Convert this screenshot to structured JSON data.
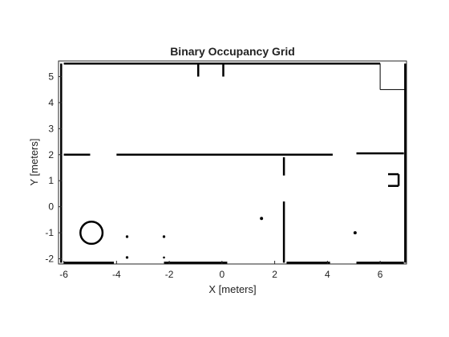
{
  "chart_data": {
    "type": "heatmap",
    "title": "Binary Occupancy Grid",
    "xlabel": "X [meters]",
    "ylabel": "Y [meters]",
    "xlim": [
      -6.2,
      7.0
    ],
    "ylim": [
      -2.2,
      5.6
    ],
    "xticks": [
      "-6",
      "-4",
      "-2",
      "0",
      "2",
      "4",
      "6"
    ],
    "yticks": [
      "-2",
      "-1",
      "0",
      "1",
      "2",
      "3",
      "4",
      "5"
    ],
    "grid": false,
    "occupied_color": "#000000",
    "free_color": "#ffffff",
    "occupied_segments": [
      {
        "name": "top-wall",
        "x": [
          -6.0,
          6.0
        ],
        "y": [
          5.5,
          5.5
        ]
      },
      {
        "name": "bottom-wall-left",
        "x": [
          -6.0,
          -4.1
        ],
        "y": [
          -2.15,
          -2.15
        ]
      },
      {
        "name": "bottom-wall-mid",
        "x": [
          -2.2,
          0.2
        ],
        "y": [
          -2.15,
          -2.15
        ]
      },
      {
        "name": "bottom-wall-mid2",
        "x": [
          2.45,
          4.1
        ],
        "y": [
          -2.15,
          -2.15
        ]
      },
      {
        "name": "bottom-wall-right",
        "x": [
          5.1,
          6.9
        ],
        "y": [
          -2.15,
          -2.15
        ]
      },
      {
        "name": "left-wall",
        "x": [
          -6.1,
          -6.1
        ],
        "y": [
          -2.15,
          5.5
        ]
      },
      {
        "name": "right-wall",
        "x": [
          6.95,
          6.95
        ],
        "y": [
          -2.15,
          5.5
        ]
      },
      {
        "name": "divider-left",
        "x": [
          -6.0,
          -5.0
        ],
        "y": [
          2.0,
          2.0
        ]
      },
      {
        "name": "divider-center",
        "x": [
          -4.0,
          4.2
        ],
        "y": [
          2.0,
          2.0
        ]
      },
      {
        "name": "divider-right",
        "x": [
          5.1,
          6.9
        ],
        "y": [
          2.05,
          2.05
        ]
      },
      {
        "name": "center-pillar",
        "x": [
          2.35,
          2.35
        ],
        "y": [
          -2.15,
          0.2
        ]
      },
      {
        "name": "door-post",
        "x": [
          2.35,
          2.35
        ],
        "y": [
          1.2,
          1.9
        ]
      },
      {
        "name": "right-notch",
        "x": [
          6.3,
          6.7
        ],
        "y": [
          1.25,
          1.25
        ]
      },
      {
        "name": "right-notch-v",
        "x": [
          6.7,
          6.7
        ],
        "y": [
          0.8,
          1.25
        ]
      },
      {
        "name": "right-notch-b",
        "x": [
          6.3,
          6.7
        ],
        "y": [
          0.8,
          0.8
        ]
      },
      {
        "name": "top-stub-1",
        "x": [
          -0.9,
          -0.9
        ],
        "y": [
          5.0,
          5.5
        ]
      },
      {
        "name": "top-stub-2",
        "x": [
          0.05,
          0.05
        ],
        "y": [
          5.0,
          5.5
        ]
      },
      {
        "name": "corner-box-v",
        "x": [
          6.0,
          6.0
        ],
        "y": [
          4.5,
          5.5
        ]
      },
      {
        "name": "corner-box-h",
        "x": [
          6.0,
          6.95
        ],
        "y": [
          4.5,
          4.5
        ]
      }
    ],
    "occupied_blobs": [
      {
        "name": "round-obstacle",
        "x": -4.95,
        "y": -1.0,
        "r": 0.42
      },
      {
        "name": "speck-1",
        "x": -3.6,
        "y": -1.15,
        "r": 0.05
      },
      {
        "name": "speck-2",
        "x": -2.2,
        "y": -1.15,
        "r": 0.05
      },
      {
        "name": "speck-3",
        "x": 1.5,
        "y": -0.45,
        "r": 0.06
      },
      {
        "name": "speck-4",
        "x": 5.05,
        "y": -1.0,
        "r": 0.06
      },
      {
        "name": "speck-5",
        "x": -3.6,
        "y": -1.95,
        "r": 0.05
      },
      {
        "name": "speck-6",
        "x": -2.2,
        "y": -1.95,
        "r": 0.04
      }
    ]
  }
}
